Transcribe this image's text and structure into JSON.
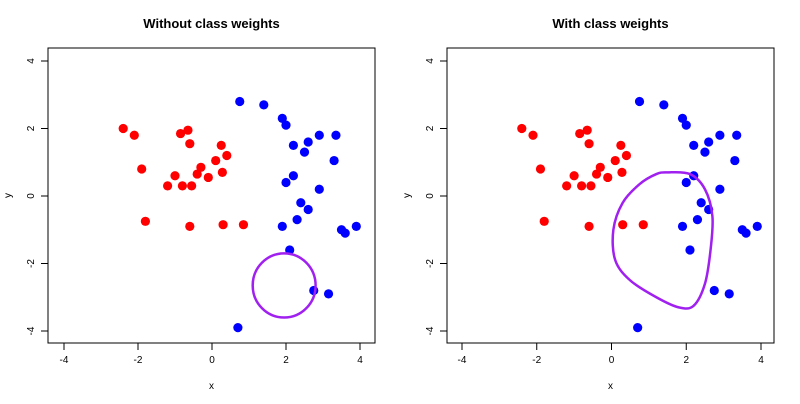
{
  "chart_data": [
    {
      "type": "scatter",
      "title": "Without class weights",
      "xlabel": "x",
      "ylabel": "y",
      "xlim": [
        -4,
        4
      ],
      "ylim": [
        -4,
        4
      ],
      "xticks": [
        -4,
        -2,
        0,
        2,
        4
      ],
      "yticks": [
        -4,
        -2,
        0,
        2,
        4
      ],
      "grid": false,
      "series": [
        {
          "color": "#0000ff",
          "points": [
            [
              3.9,
              -0.9
            ],
            [
              3.6,
              -1.1
            ],
            [
              3.5,
              -1.0
            ],
            [
              3.35,
              1.8
            ],
            [
              3.3,
              1.05
            ],
            [
              3.15,
              -2.9
            ],
            [
              2.9,
              1.8
            ],
            [
              2.75,
              -2.8
            ],
            [
              0.7,
              -3.9
            ],
            [
              0.75,
              2.8
            ],
            [
              2.6,
              1.6
            ],
            [
              1.4,
              2.7
            ],
            [
              2.4,
              -0.2
            ],
            [
              2.5,
              1.3
            ],
            [
              2.3,
              -0.7
            ],
            [
              2.2,
              0.6
            ],
            [
              2.2,
              1.5
            ],
            [
              2.1,
              -1.6
            ],
            [
              2.0,
              0.4
            ],
            [
              1.9,
              2.3
            ],
            [
              1.9,
              -0.9
            ],
            [
              2.9,
              0.2
            ],
            [
              2.6,
              -0.4
            ],
            [
              2.0,
              2.1
            ]
          ]
        },
        {
          "color": "#ff0000",
          "points": [
            [
              0.85,
              -0.85
            ],
            [
              0.3,
              -0.85
            ],
            [
              0.4,
              1.2
            ],
            [
              0.25,
              1.5
            ],
            [
              0.28,
              0.7
            ],
            [
              0.1,
              1.05
            ],
            [
              -0.1,
              0.55
            ],
            [
              -0.3,
              0.85
            ],
            [
              -0.4,
              0.65
            ],
            [
              -0.55,
              0.3
            ],
            [
              -0.6,
              1.55
            ],
            [
              -0.65,
              1.95
            ],
            [
              -0.85,
              1.85
            ],
            [
              -1.0,
              0.6
            ],
            [
              -1.2,
              0.3
            ],
            [
              -0.8,
              0.3
            ],
            [
              -0.6,
              -0.9
            ],
            [
              -1.8,
              -0.75
            ],
            [
              -1.9,
              0.8
            ],
            [
              -2.1,
              1.8
            ],
            [
              -2.4,
              2.0
            ]
          ]
        }
      ],
      "decision_boundary": {
        "color": "#a020f0",
        "shape": "circle",
        "center": [
          1.95,
          -2.65
        ],
        "radius": [
          0.85,
          0.95
        ]
      }
    },
    {
      "type": "scatter",
      "title": "With class weights",
      "xlabel": "x",
      "ylabel": "y",
      "xlim": [
        -4,
        4
      ],
      "ylim": [
        -4,
        4
      ],
      "xticks": [
        -4,
        -2,
        0,
        2,
        4
      ],
      "yticks": [
        -4,
        -2,
        0,
        2,
        4
      ],
      "grid": false,
      "series": [
        {
          "color": "#0000ff",
          "points": [
            [
              3.9,
              -0.9
            ],
            [
              3.6,
              -1.1
            ],
            [
              3.5,
              -1.0
            ],
            [
              3.35,
              1.8
            ],
            [
              3.3,
              1.05
            ],
            [
              3.15,
              -2.9
            ],
            [
              2.9,
              1.8
            ],
            [
              2.75,
              -2.8
            ],
            [
              0.7,
              -3.9
            ],
            [
              0.75,
              2.8
            ],
            [
              2.6,
              1.6
            ],
            [
              1.4,
              2.7
            ],
            [
              2.4,
              -0.2
            ],
            [
              2.5,
              1.3
            ],
            [
              2.3,
              -0.7
            ],
            [
              2.2,
              0.6
            ],
            [
              2.2,
              1.5
            ],
            [
              2.1,
              -1.6
            ],
            [
              2.0,
              0.4
            ],
            [
              1.9,
              2.3
            ],
            [
              1.9,
              -0.9
            ],
            [
              2.9,
              0.2
            ],
            [
              2.6,
              -0.4
            ],
            [
              2.0,
              2.1
            ]
          ]
        },
        {
          "color": "#ff0000",
          "points": [
            [
              0.85,
              -0.85
            ],
            [
              0.3,
              -0.85
            ],
            [
              0.4,
              1.2
            ],
            [
              0.25,
              1.5
            ],
            [
              0.28,
              0.7
            ],
            [
              0.1,
              1.05
            ],
            [
              -0.1,
              0.55
            ],
            [
              -0.3,
              0.85
            ],
            [
              -0.4,
              0.65
            ],
            [
              -0.55,
              0.3
            ],
            [
              -0.6,
              1.55
            ],
            [
              -0.65,
              1.95
            ],
            [
              -0.85,
              1.85
            ],
            [
              -1.0,
              0.6
            ],
            [
              -1.2,
              0.3
            ],
            [
              -0.8,
              0.3
            ],
            [
              -0.6,
              -0.9
            ],
            [
              -1.8,
              -0.75
            ],
            [
              -1.9,
              0.8
            ],
            [
              -2.1,
              1.8
            ],
            [
              -2.4,
              2.0
            ]
          ]
        }
      ],
      "decision_boundary": {
        "color": "#a020f0",
        "shape": "closed-curve",
        "points": [
          [
            1.5,
            0.7
          ],
          [
            2.1,
            0.65
          ],
          [
            2.5,
            0.2
          ],
          [
            2.7,
            -0.6
          ],
          [
            2.65,
            -1.6
          ],
          [
            2.5,
            -2.6
          ],
          [
            2.2,
            -3.25
          ],
          [
            1.8,
            -3.3
          ],
          [
            1.2,
            -3.0
          ],
          [
            0.5,
            -2.5
          ],
          [
            0.1,
            -1.9
          ],
          [
            0.05,
            -1.0
          ],
          [
            0.3,
            -0.2
          ],
          [
            0.75,
            0.35
          ],
          [
            1.2,
            0.65
          ],
          [
            1.5,
            0.7
          ]
        ]
      }
    }
  ]
}
